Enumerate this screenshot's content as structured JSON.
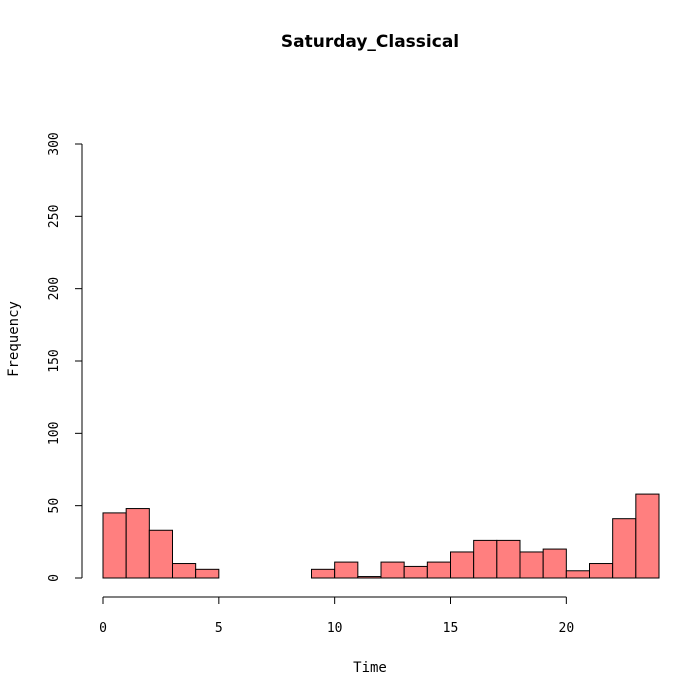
{
  "chart_data": {
    "type": "bar",
    "title": "Saturday_Classical",
    "xlabel": "Time",
    "ylabel": "Frequency",
    "bar_color": "#ff7f7f",
    "bin_width": 1,
    "xlim": [
      0,
      24
    ],
    "ylim": [
      0,
      300
    ],
    "x_ticks": [
      0,
      5,
      10,
      15,
      20
    ],
    "y_ticks": [
      0,
      50,
      100,
      150,
      200,
      250,
      300
    ],
    "bins": [
      {
        "x0": 0,
        "x1": 1,
        "value": 45
      },
      {
        "x0": 1,
        "x1": 2,
        "value": 48
      },
      {
        "x0": 2,
        "x1": 3,
        "value": 33
      },
      {
        "x0": 3,
        "x1": 4,
        "value": 10
      },
      {
        "x0": 4,
        "x1": 5,
        "value": 6
      },
      {
        "x0": 5,
        "x1": 6,
        "value": 0
      },
      {
        "x0": 6,
        "x1": 7,
        "value": 0
      },
      {
        "x0": 7,
        "x1": 8,
        "value": 0
      },
      {
        "x0": 8,
        "x1": 9,
        "value": 0
      },
      {
        "x0": 9,
        "x1": 10,
        "value": 6
      },
      {
        "x0": 10,
        "x1": 11,
        "value": 11
      },
      {
        "x0": 11,
        "x1": 12,
        "value": 1
      },
      {
        "x0": 12,
        "x1": 13,
        "value": 11
      },
      {
        "x0": 13,
        "x1": 14,
        "value": 8
      },
      {
        "x0": 14,
        "x1": 15,
        "value": 11
      },
      {
        "x0": 15,
        "x1": 16,
        "value": 18
      },
      {
        "x0": 16,
        "x1": 17,
        "value": 26
      },
      {
        "x0": 17,
        "x1": 18,
        "value": 26
      },
      {
        "x0": 18,
        "x1": 19,
        "value": 18
      },
      {
        "x0": 19,
        "x1": 20,
        "value": 20
      },
      {
        "x0": 20,
        "x1": 21,
        "value": 5
      },
      {
        "x0": 21,
        "x1": 22,
        "value": 10
      },
      {
        "x0": 22,
        "x1": 23,
        "value": 41
      },
      {
        "x0": 23,
        "x1": 24,
        "value": 58
      }
    ]
  }
}
